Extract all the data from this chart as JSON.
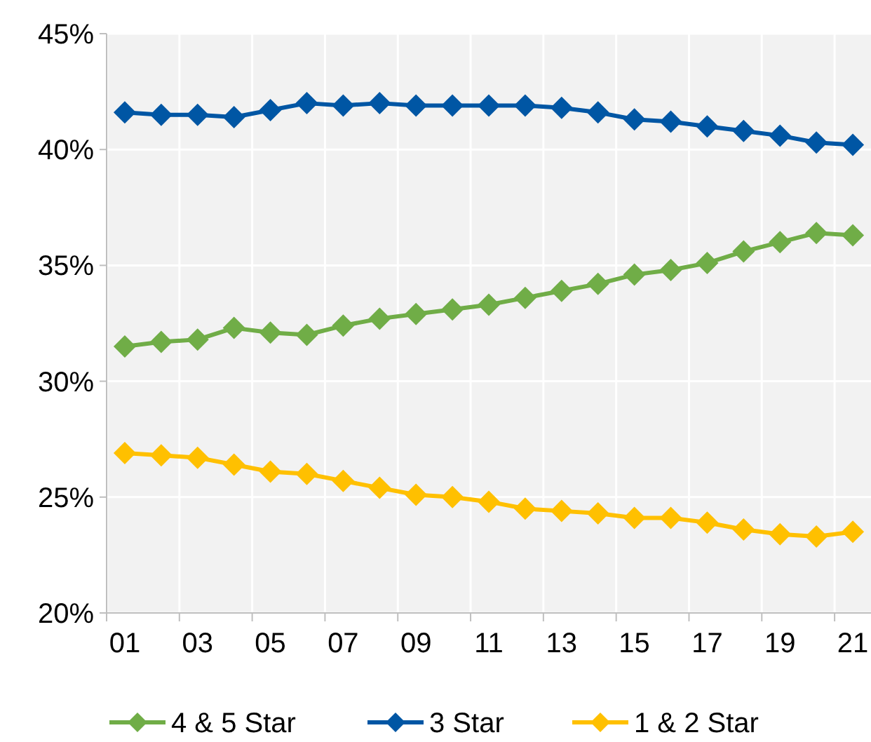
{
  "chart_data": {
    "type": "line",
    "categories": [
      "01",
      null,
      "03",
      null,
      "05",
      null,
      "07",
      null,
      "09",
      null,
      "11",
      null,
      "13",
      null,
      "15",
      null,
      "17",
      null,
      "19",
      null,
      "21"
    ],
    "ylim": [
      20,
      45
    ],
    "yticks": [
      {
        "value": 20,
        "label": "20%"
      },
      {
        "value": 25,
        "label": "25%"
      },
      {
        "value": 30,
        "label": "30%"
      },
      {
        "value": 35,
        "label": "35%"
      },
      {
        "value": 40,
        "label": "40%"
      },
      {
        "value": 45,
        "label": "45%"
      }
    ],
    "grid": true,
    "legend": "bottom",
    "marker": "diamond",
    "line_style": "solid",
    "series": [
      {
        "name": "4 & 5 Star",
        "color": "#70ad47",
        "values": [
          31.5,
          31.7,
          31.8,
          32.3,
          32.1,
          32.0,
          32.4,
          32.7,
          32.9,
          33.1,
          33.3,
          33.6,
          33.9,
          34.2,
          34.6,
          34.8,
          35.1,
          35.6,
          36.0,
          36.4,
          36.3
        ]
      },
      {
        "name": "3 Star",
        "color": "#0056a4",
        "values": [
          41.6,
          41.5,
          41.5,
          41.4,
          41.7,
          42.0,
          41.9,
          42.0,
          41.9,
          41.9,
          41.9,
          41.9,
          41.8,
          41.6,
          41.3,
          41.2,
          41.0,
          40.8,
          40.6,
          40.3,
          40.2
        ]
      },
      {
        "name": "1 & 2 Star",
        "color": "#ffc000",
        "values": [
          26.9,
          26.8,
          26.7,
          26.4,
          26.1,
          26.0,
          25.7,
          25.4,
          25.1,
          25.0,
          24.8,
          24.5,
          24.4,
          24.3,
          24.1,
          24.1,
          23.9,
          23.6,
          23.4,
          23.3,
          23.5
        ]
      }
    ]
  }
}
